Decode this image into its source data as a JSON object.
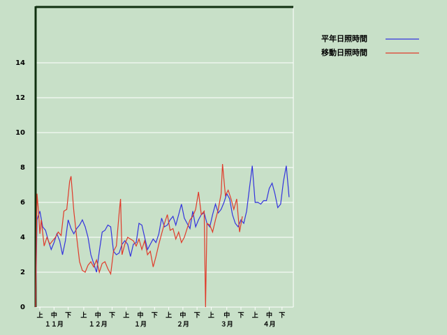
{
  "chart_data": {
    "type": "line",
    "series": [
      {
        "name": "平年日照時間",
        "color": "#3333dd",
        "x": [
          0,
          1,
          3,
          5,
          7,
          9,
          11,
          13,
          15,
          17,
          19,
          21,
          23,
          25,
          27,
          29,
          31,
          33,
          35,
          37,
          39,
          41,
          43,
          45,
          47,
          49,
          51,
          53,
          55,
          57,
          59,
          61,
          63,
          65,
          67,
          69,
          71,
          73,
          75,
          77,
          79,
          81,
          83,
          85,
          87,
          89,
          91,
          93,
          95,
          97,
          99,
          101,
          103,
          105,
          107,
          109,
          111,
          113,
          115,
          117,
          119,
          121,
          123,
          125,
          127,
          129,
          131,
          133,
          135,
          137,
          139,
          141,
          143,
          145,
          147,
          149,
          151,
          153,
          155,
          157,
          159,
          161,
          163,
          165,
          167,
          169,
          171,
          173,
          175,
          177,
          179
        ],
        "values": [
          0,
          5.0,
          5.5,
          4.6,
          4.4,
          3.8,
          3.3,
          3.7,
          4.2,
          3.8,
          3.0,
          3.8,
          5.0,
          4.5,
          4.2,
          4.5,
          4.7,
          5.0,
          4.6,
          4.0,
          3.0,
          2.5,
          2.0,
          3.2,
          4.3,
          4.4,
          4.7,
          4.6,
          3.2,
          3.0,
          3.1,
          3.6,
          3.8,
          3.6,
          2.9,
          3.6,
          3.7,
          4.8,
          4.7,
          4.0,
          3.3,
          3.6,
          3.9,
          3.7,
          4.2,
          5.1,
          4.6,
          4.7,
          5.0,
          5.2,
          4.7,
          5.3,
          5.9,
          5.1,
          4.8,
          4.5,
          5.5,
          4.6,
          5.0,
          5.3,
          5.4,
          4.8,
          4.6,
          5.3,
          5.9,
          5.4,
          5.6,
          6.0,
          6.5,
          6.2,
          5.3,
          4.8,
          4.6,
          5.0,
          4.8,
          5.5,
          6.8,
          8.1,
          6.0,
          6.0,
          5.9,
          6.1,
          6.1,
          6.8,
          7.1,
          6.5,
          5.7,
          5.9,
          7.2,
          8.1,
          6.3
        ]
      },
      {
        "name": "移動日照時間",
        "color": "#e03a2a",
        "x": [
          0,
          1,
          2,
          3,
          4,
          6,
          8,
          10,
          12,
          14,
          16,
          18,
          20,
          22,
          24,
          25,
          27,
          29,
          31,
          33,
          35,
          37,
          39,
          41,
          43,
          45,
          47,
          49,
          51,
          53,
          55,
          57,
          59,
          60,
          61,
          63,
          65,
          67,
          69,
          71,
          73,
          75,
          77,
          79,
          81,
          83,
          85,
          87,
          89,
          91,
          93,
          95,
          97,
          99,
          101,
          103,
          105,
          107,
          109,
          111,
          113,
          115,
          117,
          119,
          120,
          121,
          123,
          125,
          127,
          129,
          131,
          132,
          134,
          136,
          138,
          140,
          142,
          144,
          146
        ],
        "values": [
          0,
          6.5,
          5.5,
          4.2,
          5.0,
          3.5,
          4.0,
          3.6,
          3.8,
          4.0,
          4.3,
          4.1,
          5.5,
          5.6,
          7.2,
          7.5,
          5.5,
          4.0,
          2.6,
          2.1,
          2.0,
          2.4,
          2.6,
          2.3,
          2.7,
          2.0,
          2.5,
          2.6,
          2.2,
          1.9,
          3.2,
          3.5,
          5.4,
          6.2,
          3.0,
          3.6,
          4.0,
          3.9,
          3.8,
          3.5,
          3.9,
          3.3,
          3.8,
          3.0,
          3.2,
          2.3,
          2.9,
          3.6,
          4.2,
          4.8,
          5.3,
          4.4,
          4.5,
          3.9,
          4.3,
          3.7,
          4.0,
          4.5,
          5.0,
          5.2,
          5.6,
          6.6,
          5.3,
          5.5,
          0,
          4.8,
          4.7,
          4.3,
          5.0,
          5.6,
          6.5,
          8.2,
          6.4,
          6.7,
          6.2,
          5.6,
          6.2,
          4.3,
          5.2
        ]
      }
    ],
    "xlim": [
      0,
      182
    ],
    "xticks": [
      {
        "value": 3,
        "label": "上"
      },
      {
        "value": 13,
        "label": "中"
      },
      {
        "value": 23,
        "label": "下"
      },
      {
        "value": 34,
        "label": "上"
      },
      {
        "value": 44,
        "label": "中"
      },
      {
        "value": 54,
        "label": "下"
      },
      {
        "value": 64,
        "label": "上"
      },
      {
        "value": 74,
        "label": "中"
      },
      {
        "value": 84,
        "label": "下"
      },
      {
        "value": 94,
        "label": "上"
      },
      {
        "value": 104,
        "label": "中"
      },
      {
        "value": 114,
        "label": "下"
      },
      {
        "value": 124,
        "label": "上"
      },
      {
        "value": 135,
        "label": "中"
      },
      {
        "value": 145,
        "label": "下"
      },
      {
        "value": 155,
        "label": "上"
      },
      {
        "value": 165,
        "label": "中"
      },
      {
        "value": 174,
        "label": "下"
      }
    ],
    "month_labels": [
      {
        "value": 13,
        "label": "１１月"
      },
      {
        "value": 44,
        "label": "１２月"
      },
      {
        "value": 74,
        "label": "１月"
      },
      {
        "value": 104,
        "label": "２月"
      },
      {
        "value": 135,
        "label": "３月"
      },
      {
        "value": 165,
        "label": "４月"
      }
    ],
    "ylim": [
      0,
      17.2
    ],
    "yticks": [
      0,
      2,
      4,
      6,
      8,
      10,
      12,
      14
    ],
    "grid": true
  }
}
